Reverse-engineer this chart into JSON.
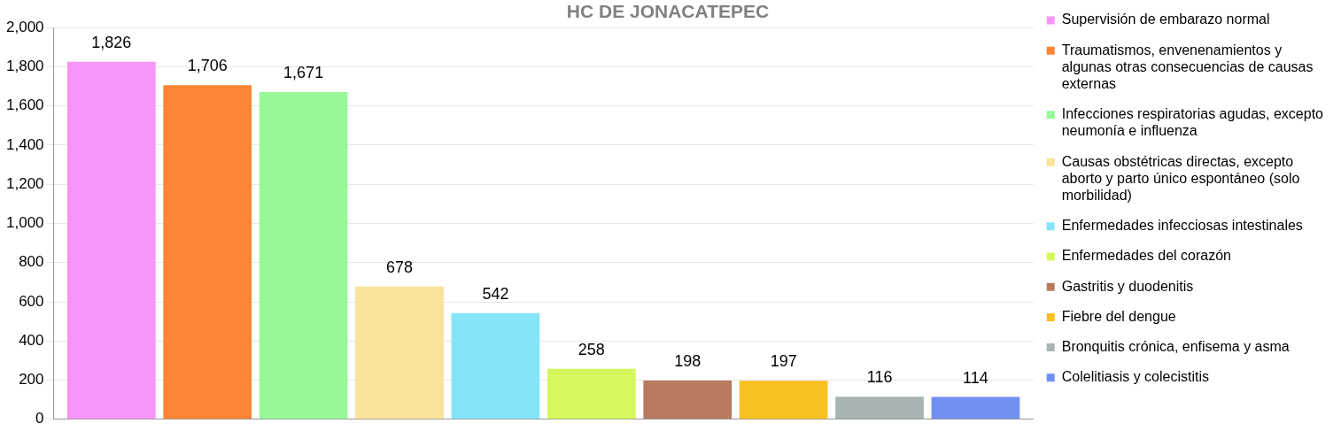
{
  "chart_data": {
    "type": "bar",
    "title": "HC DE JONACATEPEC",
    "categories": [
      null
    ],
    "series": [
      {
        "name": "Supervisión de embarazo normal",
        "color": "#f794f7",
        "values": [
          1826
        ],
        "value_labels": [
          "1,826"
        ]
      },
      {
        "name": "Traumatismos, envenenamientos y algunas otras consecuencias de causas externas",
        "color": "#fb8535",
        "values": [
          1706
        ],
        "value_labels": [
          "1,706"
        ]
      },
      {
        "name": "Infecciones respiratorias agudas, excepto neumonía e influenza",
        "color": "#98f898",
        "values": [
          1671
        ],
        "value_labels": [
          "1,671"
        ]
      },
      {
        "name": "Causas obstétricas directas, excepto aborto y parto único espontáneo (solo morbilidad)",
        "color": "#f8e398",
        "values": [
          678
        ],
        "value_labels": [
          "678"
        ]
      },
      {
        "name": "Enfermedades infecciosas intestinales",
        "color": "#86e4f8",
        "values": [
          542
        ],
        "value_labels": [
          "542"
        ]
      },
      {
        "name": "Enfermedades del corazón",
        "color": "#d4f85c",
        "values": [
          258
        ],
        "value_labels": [
          "258"
        ]
      },
      {
        "name": "Gastritis y duodenitis",
        "color": "#b87a60",
        "values": [
          198
        ],
        "value_labels": [
          "198"
        ]
      },
      {
        "name": "Fiebre del dengue",
        "color": "#f8c020",
        "values": [
          197
        ],
        "value_labels": [
          "197"
        ]
      },
      {
        "name": "Bronquitis crónica, enfisema y asma",
        "color": "#a8b4b4",
        "values": [
          116
        ],
        "value_labels": [
          "116"
        ]
      },
      {
        "name": "Colelitiasis y colecistitis",
        "color": "#7090f0",
        "values": [
          114
        ],
        "value_labels": [
          "114"
        ]
      }
    ],
    "ylim": [
      0,
      2000
    ],
    "yticks": [
      {
        "value": 0,
        "label": "0"
      },
      {
        "value": 200,
        "label": "200"
      },
      {
        "value": 400,
        "label": "400"
      },
      {
        "value": 600,
        "label": "600"
      },
      {
        "value": 800,
        "label": "800"
      },
      {
        "value": 1000,
        "label": "1,000"
      },
      {
        "value": 1200,
        "label": "1,200"
      },
      {
        "value": 1400,
        "label": "1,400"
      },
      {
        "value": 1600,
        "label": "1,600"
      },
      {
        "value": 1800,
        "label": "1,800"
      },
      {
        "value": 2000,
        "label": "2,000"
      }
    ],
    "grid": "y",
    "legend": "right",
    "tick_labels": "y"
  }
}
